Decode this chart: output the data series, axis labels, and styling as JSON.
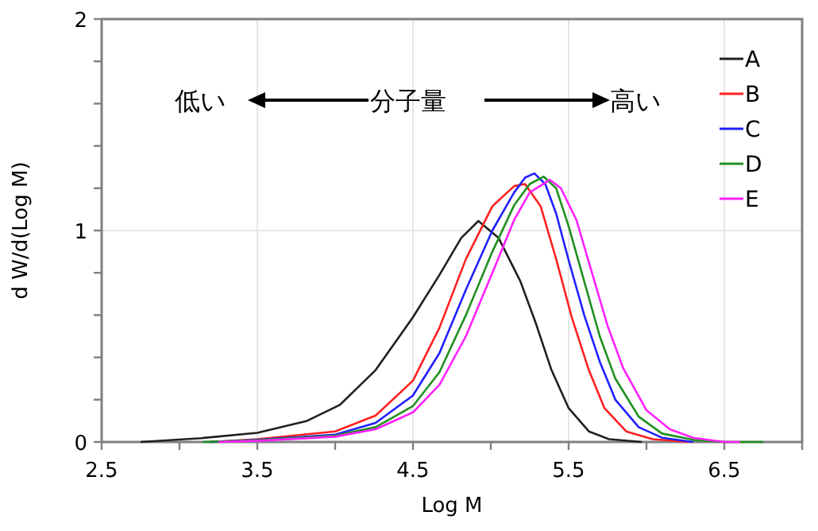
{
  "chart_data": {
    "type": "line",
    "xlabel": "Log M",
    "ylabel": "d W/d(Log M)",
    "xlim": [
      2.5,
      7.0
    ],
    "ylim": [
      0,
      2
    ],
    "xticks": [
      2.5,
      {
        "value": 3,
        "label": null
      },
      3.5,
      {
        "value": 4,
        "label": null
      },
      4.5,
      {
        "value": 5,
        "label": null
      },
      5.5,
      {
        "value": 6,
        "label": null
      },
      6.5,
      {
        "value": 7,
        "label": null
      }
    ],
    "yticks": [
      0,
      {
        "value": 0.2,
        "label": null
      },
      {
        "value": 0.4,
        "label": null
      },
      {
        "value": 0.6,
        "label": null
      },
      {
        "value": 0.8,
        "label": null
      },
      1,
      {
        "value": 1.2,
        "label": null
      },
      {
        "value": 1.4,
        "label": null
      },
      {
        "value": 1.6,
        "label": null
      },
      {
        "value": 1.8,
        "label": null
      },
      2
    ],
    "grid": true,
    "legend": "top right",
    "line_style": "solid",
    "annotations": [
      "低い",
      "分子量",
      "高い"
    ],
    "series": [
      {
        "name": "A",
        "color": "#202020",
        "x": [
          2.75,
          3.14,
          3.5,
          3.82,
          4.03,
          4.26,
          4.5,
          4.67,
          4.81,
          4.92,
          5.05,
          5.19,
          5.29,
          5.39,
          5.5,
          5.63,
          5.76,
          5.97
        ],
        "values": [
          0,
          0.018,
          0.043,
          0.1,
          0.175,
          0.34,
          0.59,
          0.79,
          0.965,
          1.045,
          0.965,
          0.76,
          0.56,
          0.34,
          0.16,
          0.05,
          0.013,
          0
        ]
      },
      {
        "name": "B",
        "color": "#ff2020",
        "x": [
          3.2,
          3.5,
          4.0,
          4.26,
          4.5,
          4.67,
          4.84,
          5.01,
          5.15,
          5.22,
          5.32,
          5.42,
          5.52,
          5.63,
          5.73,
          5.87,
          6.04,
          6.27
        ],
        "values": [
          0,
          0.013,
          0.05,
          0.125,
          0.29,
          0.54,
          0.865,
          1.115,
          1.21,
          1.22,
          1.115,
          0.865,
          0.59,
          0.34,
          0.16,
          0.05,
          0.013,
          0
        ]
      },
      {
        "name": "C",
        "color": "#2020ff",
        "x": [
          3.2,
          3.5,
          4.0,
          4.26,
          4.5,
          4.67,
          4.84,
          5.01,
          5.15,
          5.22,
          5.28,
          5.35,
          5.42,
          5.5,
          5.6,
          5.7,
          5.8,
          5.95,
          6.1,
          6.3
        ],
        "values": [
          0,
          0.01,
          0.035,
          0.09,
          0.22,
          0.42,
          0.72,
          1.0,
          1.18,
          1.25,
          1.27,
          1.22,
          1.08,
          0.86,
          0.6,
          0.38,
          0.2,
          0.07,
          0.02,
          0
        ]
      },
      {
        "name": "D",
        "color": "#209020",
        "x": [
          3.15,
          3.5,
          4.0,
          4.26,
          4.5,
          4.67,
          4.84,
          5.01,
          5.15,
          5.25,
          5.34,
          5.42,
          5.5,
          5.6,
          5.7,
          5.8,
          5.95,
          6.1,
          6.3,
          6.5,
          6.75
        ],
        "values": [
          0,
          0.008,
          0.03,
          0.07,
          0.17,
          0.33,
          0.6,
          0.9,
          1.12,
          1.22,
          1.255,
          1.2,
          1.02,
          0.76,
          0.5,
          0.3,
          0.12,
          0.04,
          0.01,
          0,
          0
        ]
      },
      {
        "name": "E",
        "color": "#ff20ff",
        "x": [
          3.25,
          3.5,
          4.0,
          4.26,
          4.5,
          4.67,
          4.84,
          5.01,
          5.15,
          5.25,
          5.38,
          5.45,
          5.55,
          5.65,
          5.75,
          5.85,
          6.0,
          6.15,
          6.3,
          6.5,
          6.6
        ],
        "values": [
          0,
          0.005,
          0.025,
          0.06,
          0.14,
          0.27,
          0.5,
          0.8,
          1.05,
          1.18,
          1.24,
          1.2,
          1.05,
          0.8,
          0.55,
          0.35,
          0.15,
          0.06,
          0.02,
          0,
          0
        ]
      }
    ]
  }
}
